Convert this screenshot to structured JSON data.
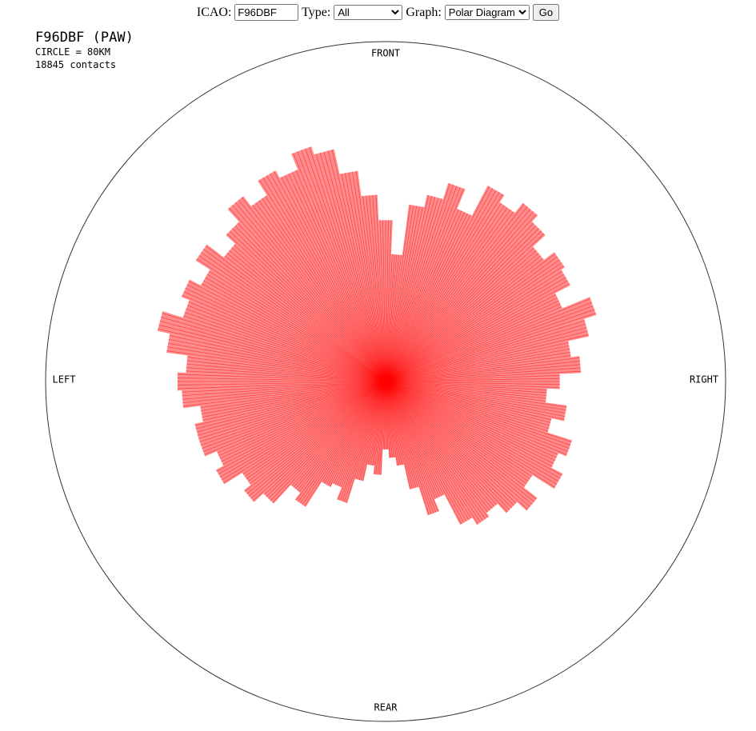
{
  "form": {
    "icao_label": "ICAO:",
    "icao_value": "F96DBF",
    "type_label": "Type:",
    "type_value": "All",
    "graph_label": "Graph:",
    "graph_value": "Polar Diagram",
    "button": "Go"
  },
  "header": {
    "title": "F96DBF (PAW)",
    "circle": "CIRCLE = 80KM",
    "contacts": "18845 contacts"
  },
  "chart_data": {
    "type": "polar",
    "directions": {
      "front": "FRONT",
      "left": "LEFT",
      "right": "RIGHT",
      "rear": "REAR"
    },
    "rlim": [
      0,
      80
    ],
    "color": "#ff0000",
    "angles": [
      0,
      5,
      10,
      15,
      20,
      25,
      30,
      35,
      40,
      45,
      50,
      55,
      60,
      65,
      70,
      75,
      80,
      85,
      90,
      95,
      100,
      105,
      110,
      115,
      120,
      125,
      130,
      135,
      140,
      145,
      150,
      155,
      160,
      165,
      170,
      175,
      180,
      185,
      190,
      195,
      200,
      205,
      210,
      215,
      220,
      225,
      230,
      235,
      240,
      245,
      250,
      255,
      260,
      265,
      270,
      275,
      280,
      285,
      290,
      295,
      300,
      305,
      310,
      315,
      320,
      325,
      330,
      335,
      340,
      345,
      350,
      355
    ],
    "values": [
      38,
      30,
      42,
      45,
      49,
      44,
      52,
      50,
      53,
      51,
      47,
      50,
      49,
      45,
      52,
      49,
      44,
      46,
      41,
      38,
      43,
      40,
      46,
      44,
      47,
      41,
      45,
      42,
      39,
      40,
      38,
      30,
      33,
      26,
      20,
      18,
      16,
      22,
      20,
      24,
      30,
      27,
      28,
      35,
      33,
      39,
      42,
      40,
      45,
      43,
      46,
      46,
      44,
      48,
      49,
      47,
      52,
      55,
      50,
      52,
      49,
      53,
      48,
      51,
      55,
      52,
      56,
      54,
      58,
      56,
      50,
      44
    ]
  }
}
